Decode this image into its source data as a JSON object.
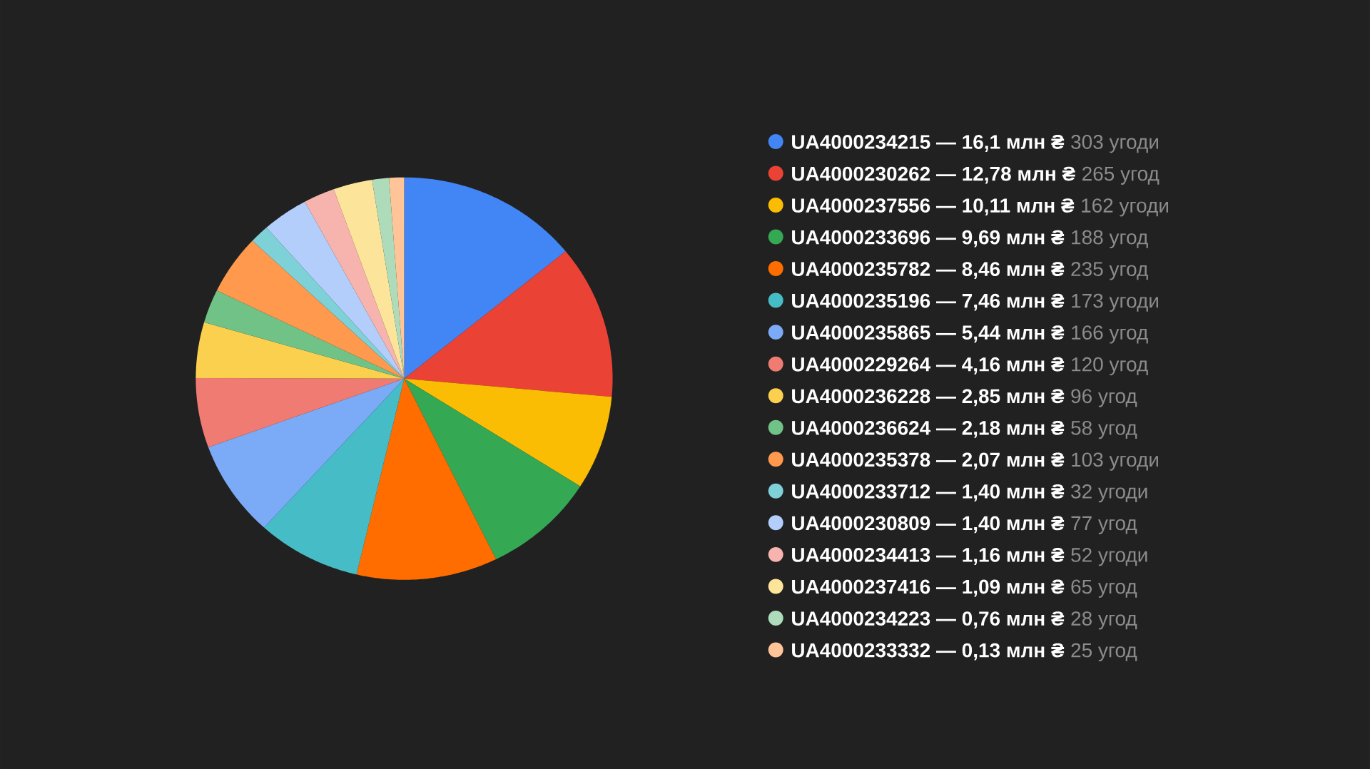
{
  "chart_data": {
    "type": "pie",
    "categories": [
      "UA4000234215 — 16,1 млн ₴",
      "UA4000230262 — 12,78 млн ₴",
      "UA4000237556 — 10,11 млн ₴",
      "UA4000233696 — 9,69 млн ₴",
      "UA4000235782 — 8,46 млн ₴",
      "UA4000235196 — 7,46 млн ₴",
      "UA4000235865 — 5,44 млн ₴",
      "UA4000229264 — 4,16 млн ₴",
      "UA4000236228 — 2,85 млн ₴",
      "UA4000236624 — 2,18 млн ₴",
      "UA4000235378 — 2,07 млн ₴",
      "UA4000233712 — 1,40 млн ₴",
      "UA4000230809 — 1,40 млн ₴",
      "UA4000234413 — 1,16 млн ₴",
      "UA4000237416 — 1,09 млн ₴",
      "UA4000234223 — 0,76 млн ₴",
      "UA4000233332 — 0,13 млн ₴"
    ],
    "values": [
      303,
      265,
      162,
      188,
      235,
      173,
      166,
      120,
      96,
      58,
      103,
      32,
      77,
      52,
      65,
      28,
      25
    ],
    "value_labels": [
      "303 угоди",
      "265 угод",
      "162 угоди",
      "188 угод",
      "235 угод",
      "173 угоди",
      "166 угод",
      "120 угод",
      "96 угод",
      "58 угод",
      "103 угоди",
      "32 угоди",
      "77 угод",
      "52 угоди",
      "65 угод",
      "28 угод",
      "25 угод"
    ],
    "colors": [
      "#4285f4",
      "#ea4335",
      "#fbbc04",
      "#34a853",
      "#ff6d01",
      "#46bdc6",
      "#7baaf7",
      "#f07b72",
      "#fcd04f",
      "#71c287",
      "#ff994d",
      "#7ed1d7",
      "#b3cefb",
      "#f7b4ae",
      "#fde49b",
      "#aedcba",
      "#ffc599"
    ],
    "legend": "right"
  }
}
